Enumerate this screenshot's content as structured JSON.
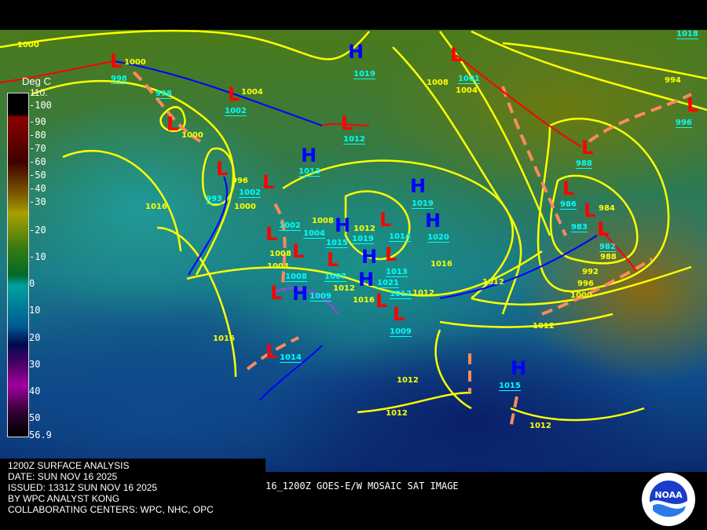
{
  "caption": {
    "title": "1200Z SURFACE ANALYSIS",
    "date": "DATE: SUN NOV 16 2025",
    "issued": "ISSUED: 1331Z SUN NOV 16 2025",
    "analyst": "BY WPC ANALYST KONG",
    "centers": "COLLABORATING CENTERS: WPC, NHC, OPC",
    "satellite": "16_1200Z GOES-E/W MOSAIC SAT IMAGE"
  },
  "scale": {
    "unit": "Deg C",
    "top_value": "110.",
    "ticks": [
      "-100",
      "-90",
      "-80",
      "-70",
      "-60",
      "-50",
      "-40",
      "-30",
      "-20",
      "-10",
      "0",
      "10",
      "20",
      "30",
      "40",
      "50",
      "56.9"
    ]
  },
  "colors": {
    "high": "#0000ff",
    "low": "#ff0000",
    "isobar": "#ffff00",
    "pressure_label": "#00ffff",
    "trough": "#ff8a5a",
    "cold_front": "#0000ff",
    "warm_front": "#ff0000",
    "occluded": "#a040e0"
  },
  "logo": {
    "text": "NOAA"
  },
  "highs": [
    {
      "label": "H",
      "pressure": "1019"
    },
    {
      "label": "H",
      "pressure": "1013"
    },
    {
      "label": "H",
      "pressure": "1019"
    },
    {
      "label": "H",
      "pressure": "1020"
    },
    {
      "label": "H",
      "pressure": "1015"
    },
    {
      "label": "H",
      "pressure": "1019"
    },
    {
      "label": "H",
      "pressure": "1021"
    },
    {
      "label": "H",
      "pressure": "1009"
    },
    {
      "label": "H",
      "pressure": "1015"
    }
  ],
  "lows": [
    {
      "label": "L",
      "pressure": "998"
    },
    {
      "label": "L",
      "pressure": "998"
    },
    {
      "label": "L",
      "pressure": "1002"
    },
    {
      "label": "L",
      "pressure": "1012"
    },
    {
      "label": "L",
      "pressure": "993"
    },
    {
      "label": "L",
      "pressure": "1002"
    },
    {
      "label": "L",
      "pressure": "1002"
    },
    {
      "label": "L",
      "pressure": "1004"
    },
    {
      "label": "L",
      "pressure": "1007"
    },
    {
      "label": "L",
      "pressure": "1014"
    },
    {
      "label": "L",
      "pressure": "1013"
    },
    {
      "label": "L",
      "pressure": "1012"
    },
    {
      "label": "L",
      "pressure": "1008"
    },
    {
      "label": "L",
      "pressure": "1009"
    },
    {
      "label": "L",
      "pressure": "1001"
    },
    {
      "label": "L",
      "pressure": "988"
    },
    {
      "label": "L",
      "pressure": "986"
    },
    {
      "label": "L",
      "pressure": "983"
    },
    {
      "label": "L",
      "pressure": "982"
    },
    {
      "label": "L",
      "pressure": "996"
    },
    {
      "label": "L",
      "pressure": "1014"
    }
  ],
  "isobar_labels": [
    "1000",
    "1000",
    "1000",
    "1004",
    "996",
    "1000",
    "1016",
    "1008",
    "1008",
    "1004",
    "1012",
    "1012",
    "1016",
    "1016",
    "1012",
    "1012",
    "1008",
    "1004",
    "994",
    "984",
    "988",
    "992",
    "996",
    "1000",
    "1012",
    "1016",
    "1012",
    "1012",
    "1012",
    "1018"
  ]
}
